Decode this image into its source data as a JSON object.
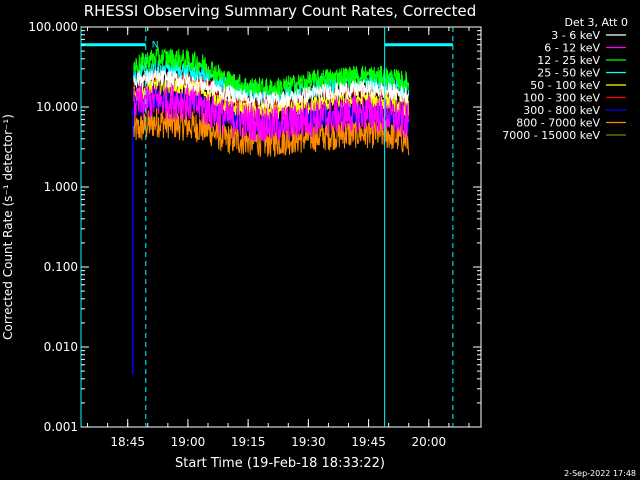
{
  "chart_data": {
    "type": "line",
    "title": "RHESSI Observing Summary Count Rates, Corrected",
    "xlabel": "Start Time (19-Feb-18 18:33:22)",
    "ylabel": "Corrected Count Rate (s⁻¹ detector⁻¹)",
    "detector_label": "Det 3, Att 0",
    "date_stamp": "2-Sep-2022 17:48",
    "flag_label": "N",
    "y_scale": "log",
    "ylim": [
      0.001,
      100
    ],
    "xlim": [
      "18:33:22",
      "20:13:00"
    ],
    "x_ticks": [
      "18:45",
      "19:00",
      "19:15",
      "19:30",
      "19:45",
      "20:00"
    ],
    "y_ticks": [
      "0.001",
      "0.010",
      "0.100",
      "1.000",
      "10.000",
      "100.000"
    ],
    "grid": false,
    "legend_position": "top-right outside",
    "background": "#000000",
    "foreground": "#ffffff",
    "data_interval": [
      "18:46:30",
      "19:55:00"
    ],
    "markers": {
      "dashed_lines": [
        "18:49:30",
        "20:06:00"
      ],
      "solid_lines": [
        "18:33:22",
        "19:49:00"
      ],
      "bars": [
        [
          "18:33:22",
          "18:49:30"
        ],
        [
          "19:49:00",
          "20:06:00"
        ]
      ],
      "bar_level": 60,
      "color": "#00ffff"
    },
    "series": [
      {
        "name": "3 - 6 keV",
        "color": "#ffffff",
        "values": [
          22,
          23,
          22,
          19,
          15,
          13,
          12,
          13,
          15,
          16,
          17,
          16,
          14
        ],
        "noise": 0.25
      },
      {
        "name": "6 - 12 keV",
        "color": "#ff00ff",
        "values": [
          11,
          12,
          12,
          10,
          7.5,
          6.5,
          6,
          6.5,
          7.5,
          8,
          8.5,
          8,
          6.5
        ],
        "noise": 0.55
      },
      {
        "name": "12 - 25 keV",
        "color": "#00ff00",
        "values": [
          32,
          42,
          40,
          35,
          22,
          18,
          17,
          19,
          22,
          24,
          25,
          24,
          20
        ],
        "noise": 0.3
      },
      {
        "name": "25 - 50 keV",
        "color": "#00ffff",
        "values": [
          24,
          30,
          29,
          26,
          18,
          15,
          14,
          16,
          18,
          20,
          21,
          20,
          16
        ],
        "noise": 0.3
      },
      {
        "name": "50 - 100 keV",
        "color": "#ffff00",
        "values": [
          14,
          19,
          18,
          16,
          10.5,
          9,
          8.5,
          9.5,
          11,
          12,
          12.5,
          12,
          9.5
        ],
        "noise": 0.25
      },
      {
        "name": "100 - 300 keV",
        "color": "#ff0000",
        "values": [
          20,
          26,
          24,
          21,
          14,
          12,
          11,
          13,
          15,
          16,
          17,
          16,
          13
        ],
        "noise": 0.22
      },
      {
        "name": "300 - 800 keV",
        "color": "#0000ff",
        "values": [
          10,
          13,
          12.5,
          11,
          7.5,
          6.5,
          6,
          6.8,
          7.5,
          8,
          8.5,
          8,
          6.5
        ],
        "noise": 0.3
      },
      {
        "name": "800 - 7000 keV",
        "color": "#ff8c00",
        "values": [
          5,
          6.5,
          6,
          5.5,
          4,
          3.8,
          3.6,
          4,
          4.3,
          4.6,
          4.8,
          4.6,
          3.8
        ],
        "noise": 0.45
      },
      {
        "name": "7000 - 15000 keV",
        "color": "#808000",
        "values": [],
        "noise": 0
      }
    ]
  }
}
